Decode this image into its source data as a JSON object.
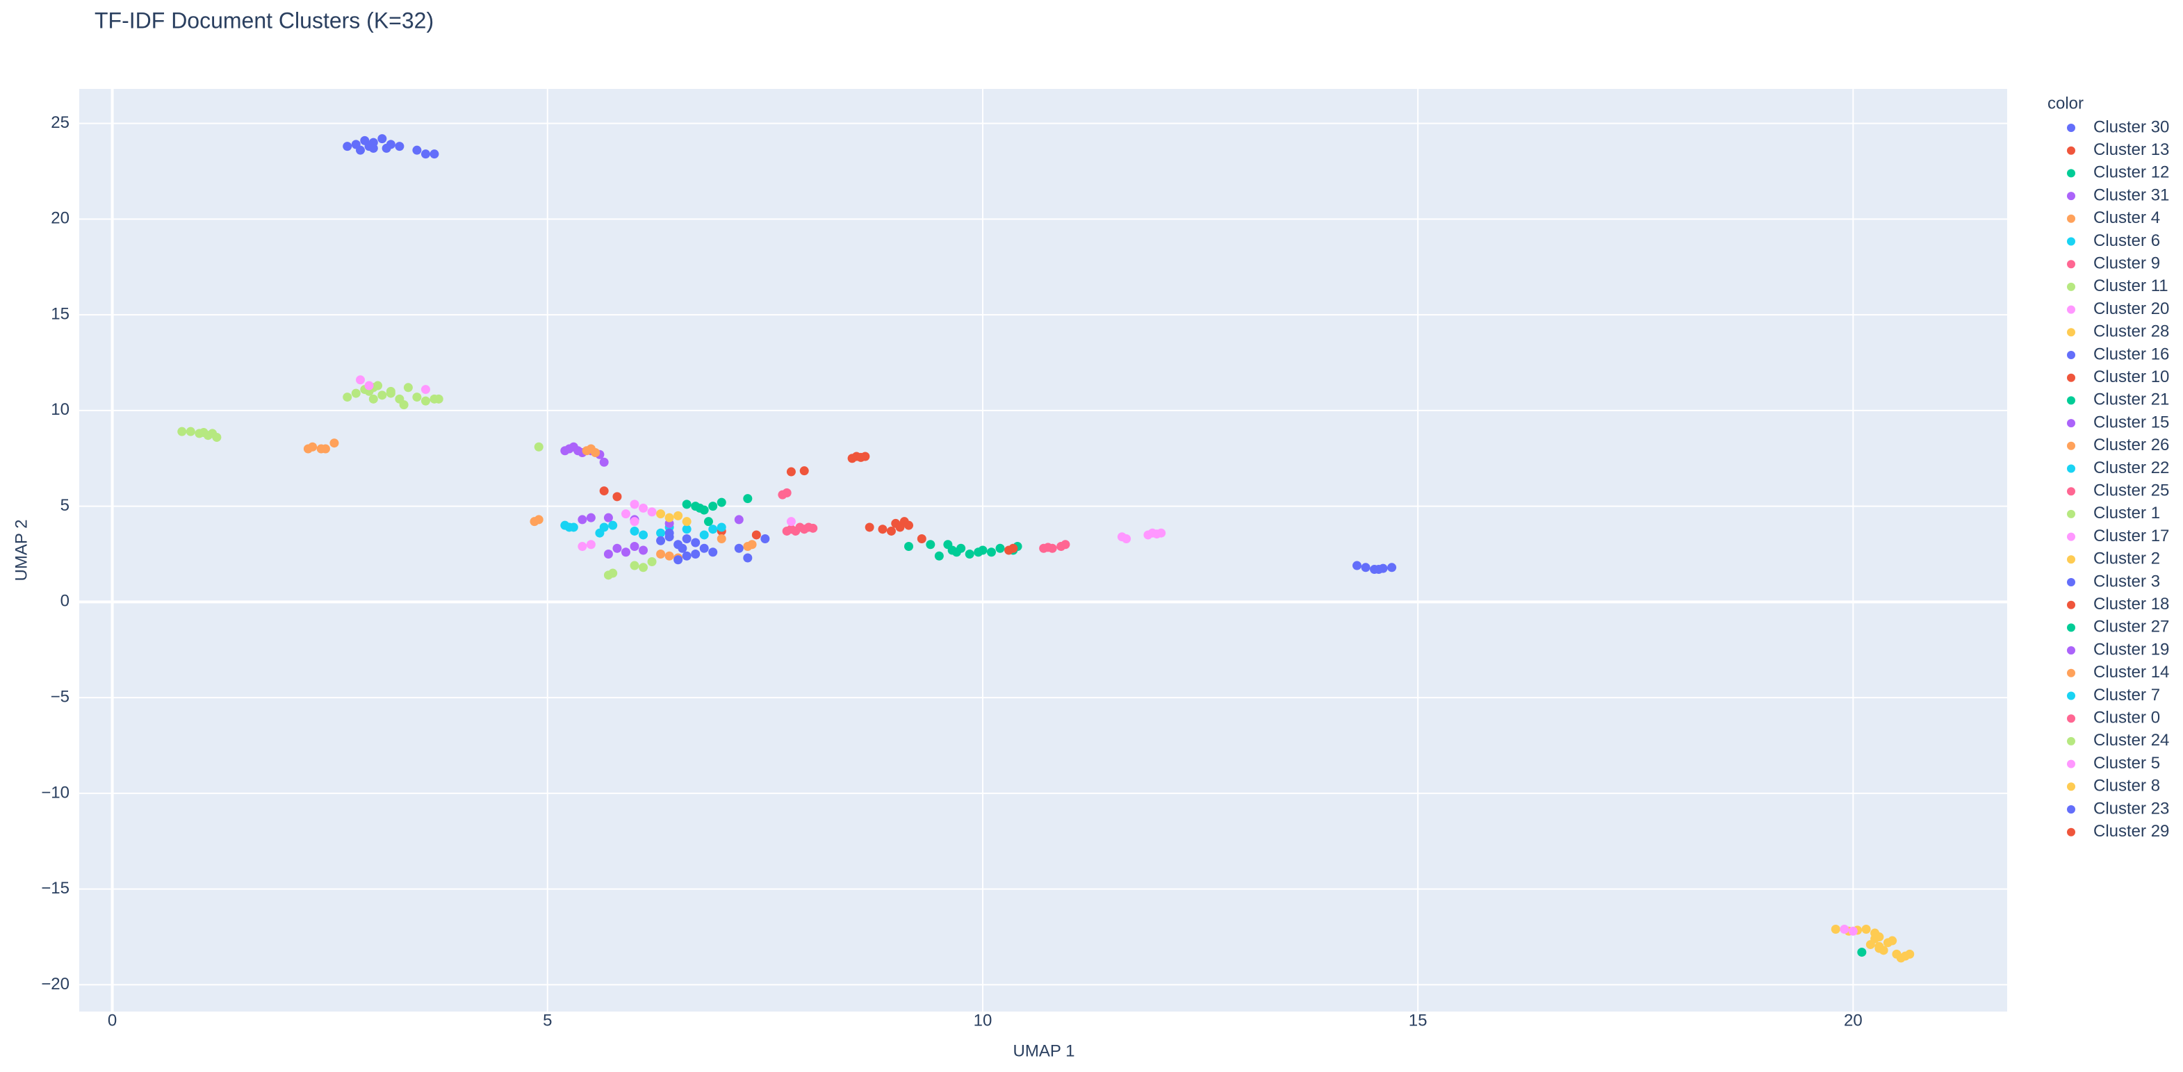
{
  "chart_data": {
    "type": "scatter",
    "title": "TF-IDF Document Clusters (K=32)",
    "x_label": "UMAP 1",
    "y_label": "UMAP 2",
    "legend_title": "color",
    "legend": "right",
    "grid": true,
    "xlim": [
      -0.38,
      21.77
    ],
    "ylim": [
      -21.4,
      26.8
    ],
    "xticks": [
      0,
      5,
      10,
      15,
      20
    ],
    "yticks": [
      {
        "value": -20,
        "label": "−20"
      },
      {
        "value": -15,
        "label": "−15"
      },
      {
        "value": -10,
        "label": "−10"
      },
      {
        "value": -5,
        "label": "−5"
      },
      0,
      5,
      10,
      15,
      20,
      25
    ],
    "series": [
      {
        "name": "Cluster 30",
        "color": "#636efa",
        "x": [
          2.7,
          2.8,
          2.9,
          3.0,
          3.1,
          3.2,
          2.85,
          3.0,
          3.3,
          3.5,
          3.6,
          3.7,
          2.95,
          3.15
        ],
        "y": [
          23.8,
          23.9,
          24.1,
          23.7,
          24.2,
          23.9,
          23.6,
          24.0,
          23.8,
          23.6,
          23.4,
          23.4,
          23.8,
          23.7
        ]
      },
      {
        "name": "Cluster 13",
        "color": "#EF553B",
        "x": [
          8.5,
          8.55,
          8.6,
          8.65
        ],
        "y": [
          7.5,
          7.6,
          7.55,
          7.6
        ]
      },
      {
        "name": "Cluster 12",
        "color": "#00cc96",
        "x": [
          6.6,
          6.7,
          6.8,
          6.9,
          7.0,
          7.3,
          6.75,
          6.85
        ],
        "y": [
          5.1,
          5.0,
          4.8,
          5.0,
          5.2,
          5.4,
          4.9,
          4.2
        ]
      },
      {
        "name": "Cluster 31",
        "color": "#ab63fa",
        "x": [
          5.2,
          5.25,
          5.3,
          5.35,
          5.4,
          5.5,
          5.6,
          5.65
        ],
        "y": [
          7.9,
          8.0,
          8.1,
          7.9,
          7.8,
          7.9,
          7.7,
          7.3
        ]
      },
      {
        "name": "Cluster 4",
        "color": "#FFA15A",
        "x": [
          2.25,
          2.3,
          2.4,
          2.45,
          2.55
        ],
        "y": [
          8.0,
          8.1,
          8.0,
          8.0,
          8.3
        ]
      },
      {
        "name": "Cluster 6",
        "color": "#19d3f3",
        "x": [
          6.0,
          6.1,
          6.3,
          6.4,
          6.6,
          6.8
        ],
        "y": [
          3.7,
          3.5,
          3.6,
          3.9,
          3.8,
          3.5
        ]
      },
      {
        "name": "Cluster 9",
        "color": "#FF6692",
        "x": [
          7.8,
          7.85,
          7.9,
          7.95,
          8.0,
          8.05,
          7.75
        ],
        "y": [
          3.8,
          3.7,
          3.9,
          3.8,
          3.9,
          3.85,
          3.7
        ]
      },
      {
        "name": "Cluster 11",
        "color": "#B6E880",
        "x": [
          2.7,
          2.8,
          2.9,
          3.0,
          3.05,
          3.1,
          3.2,
          3.3,
          3.4,
          3.5,
          3.6,
          3.7,
          3.75,
          3.2,
          3.0,
          2.95,
          3.35
        ],
        "y": [
          10.7,
          10.9,
          11.1,
          11.2,
          11.3,
          10.8,
          11.0,
          10.6,
          11.2,
          10.7,
          10.5,
          10.6,
          10.6,
          10.9,
          10.6,
          11.0,
          10.3
        ]
      },
      {
        "name": "Cluster 20",
        "color": "#FF97FF",
        "x": [
          2.85,
          2.95,
          3.6,
          6.0,
          6.1
        ],
        "y": [
          11.6,
          11.3,
          11.1,
          5.1,
          4.9
        ]
      },
      {
        "name": "Cluster 28",
        "color": "#FECB52",
        "x": [
          19.8,
          19.95,
          20.05,
          20.15,
          20.25,
          20.3
        ],
        "y": [
          -17.1,
          -17.2,
          -17.15,
          -17.1,
          -17.3,
          -17.5
        ]
      },
      {
        "name": "Cluster 16",
        "color": "#636efa",
        "x": [
          14.3,
          14.4,
          14.5,
          14.6,
          14.7,
          14.55
        ],
        "y": [
          1.9,
          1.8,
          1.7,
          1.75,
          1.8,
          1.7
        ]
      },
      {
        "name": "Cluster 10",
        "color": "#EF553B",
        "x": [
          7.8,
          7.95
        ],
        "y": [
          6.8,
          6.85
        ]
      },
      {
        "name": "Cluster 21",
        "color": "#00cc96",
        "x": [
          9.15,
          9.4,
          9.5,
          9.6,
          9.7,
          9.75,
          9.85,
          9.95,
          10.0,
          10.1,
          10.2,
          10.35,
          10.4,
          9.65
        ],
        "y": [
          2.9,
          3.0,
          2.4,
          3.0,
          2.6,
          2.8,
          2.5,
          2.6,
          2.7,
          2.6,
          2.8,
          2.7,
          2.9,
          2.7
        ]
      },
      {
        "name": "Cluster 15",
        "color": "#ab63fa",
        "x": [
          5.4,
          5.5,
          5.7,
          6.0,
          6.4,
          7.2
        ],
        "y": [
          4.3,
          4.4,
          4.4,
          4.3,
          4.1,
          4.3
        ]
      },
      {
        "name": "Cluster 26",
        "color": "#FFA15A",
        "x": [
          5.45,
          5.5,
          5.55
        ],
        "y": [
          7.9,
          8.0,
          7.8
        ]
      },
      {
        "name": "Cluster 22",
        "color": "#19d3f3",
        "x": [
          5.2,
          5.25,
          5.3,
          5.6
        ],
        "y": [
          4.0,
          3.9,
          3.9,
          3.6
        ]
      },
      {
        "name": "Cluster 25",
        "color": "#FF6692",
        "x": [
          10.7,
          10.75,
          10.8,
          10.9,
          10.95
        ],
        "y": [
          2.8,
          2.85,
          2.8,
          2.9,
          3.0
        ]
      },
      {
        "name": "Cluster 1",
        "color": "#B6E880",
        "x": [
          4.9,
          5.7,
          5.75,
          6.0,
          6.1,
          6.2
        ],
        "y": [
          8.1,
          1.4,
          1.5,
          1.9,
          1.8,
          2.1
        ]
      },
      {
        "name": "Cluster 17",
        "color": "#FF97FF",
        "x": [
          11.6,
          11.65,
          11.9,
          11.95,
          12.0,
          12.05
        ],
        "y": [
          3.4,
          3.3,
          3.5,
          3.6,
          3.55,
          3.6
        ]
      },
      {
        "name": "Cluster 2",
        "color": "#FECB52",
        "x": [
          6.3,
          6.4,
          6.5,
          6.6
        ],
        "y": [
          4.6,
          4.4,
          4.5,
          4.2
        ]
      },
      {
        "name": "Cluster 3",
        "color": "#636efa",
        "x": [
          6.3,
          6.4,
          6.5,
          6.6,
          6.7,
          6.4,
          6.55
        ],
        "y": [
          3.2,
          3.4,
          3.0,
          3.3,
          3.1,
          3.6,
          2.8
        ]
      },
      {
        "name": "Cluster 18",
        "color": "#EF553B",
        "x": [
          5.65,
          5.8,
          7.4,
          7.0
        ],
        "y": [
          5.8,
          5.5,
          3.5,
          3.7
        ]
      },
      {
        "name": "Cluster 27",
        "color": "#00cc96",
        "x": [
          20.1
        ],
        "y": [
          -18.3
        ]
      },
      {
        "name": "Cluster 19",
        "color": "#ab63fa",
        "x": [
          5.8,
          5.9,
          6.0,
          6.1,
          5.7
        ],
        "y": [
          2.8,
          2.6,
          2.9,
          2.7,
          2.5
        ]
      },
      {
        "name": "Cluster 14",
        "color": "#FFA15A",
        "x": [
          4.85,
          4.9,
          6.3,
          6.4,
          6.5,
          7.3,
          7.35,
          7.0
        ],
        "y": [
          4.2,
          4.3,
          2.5,
          2.4,
          2.3,
          2.9,
          3.0,
          3.3
        ]
      },
      {
        "name": "Cluster 7",
        "color": "#19d3f3",
        "x": [
          5.65,
          5.75,
          6.9,
          7.0
        ],
        "y": [
          3.9,
          4.0,
          3.8,
          3.9
        ]
      },
      {
        "name": "Cluster 0",
        "color": "#FF6692",
        "x": [
          7.7,
          7.75
        ],
        "y": [
          5.6,
          5.7
        ]
      },
      {
        "name": "Cluster 24",
        "color": "#B6E880",
        "x": [
          0.8,
          0.9,
          1.0,
          1.05,
          1.1,
          1.15,
          1.2
        ],
        "y": [
          8.9,
          8.9,
          8.8,
          8.85,
          8.7,
          8.8,
          8.6
        ]
      },
      {
        "name": "Cluster 5",
        "color": "#FF97FF",
        "x": [
          5.4,
          5.5,
          5.9,
          6.0,
          6.2,
          19.9,
          20.0,
          7.8
        ],
        "y": [
          2.9,
          3.0,
          4.6,
          4.2,
          4.7,
          -17.1,
          -17.2,
          4.2
        ]
      },
      {
        "name": "Cluster 8",
        "color": "#FECB52",
        "x": [
          20.2,
          20.3,
          20.35,
          20.4,
          20.45,
          20.5,
          20.55,
          20.6,
          20.65,
          20.25,
          20.3
        ],
        "y": [
          -17.9,
          -18.1,
          -18.2,
          -17.8,
          -17.7,
          -18.4,
          -18.6,
          -18.5,
          -18.4,
          -17.6,
          -18.0
        ]
      },
      {
        "name": "Cluster 23",
        "color": "#636efa",
        "x": [
          6.5,
          6.7,
          6.8,
          6.9,
          7.2,
          7.3,
          7.5,
          6.6
        ],
        "y": [
          2.2,
          2.5,
          2.8,
          2.6,
          2.8,
          2.3,
          3.3,
          2.4
        ]
      },
      {
        "name": "Cluster 29",
        "color": "#EF553B",
        "x": [
          8.7,
          8.85,
          9.0,
          9.05,
          9.1,
          9.15,
          9.3,
          8.95,
          10.3,
          10.35
        ],
        "y": [
          3.9,
          3.8,
          4.1,
          3.9,
          4.2,
          4.0,
          3.3,
          3.7,
          2.7,
          2.8
        ]
      }
    ]
  }
}
